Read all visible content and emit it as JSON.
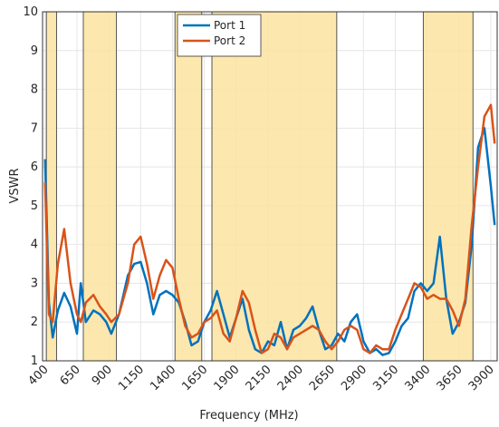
{
  "chart_data": {
    "type": "line",
    "x_label": "Frequency (MHz)",
    "y_label": "VSWR",
    "x": [
      400,
      430,
      460,
      500,
      550,
      600,
      650,
      680,
      720,
      780,
      830,
      880,
      920,
      980,
      1050,
      1100,
      1150,
      1200,
      1250,
      1300,
      1350,
      1400,
      1450,
      1500,
      1550,
      1600,
      1650,
      1700,
      1750,
      1800,
      1850,
      1900,
      1950,
      2000,
      2050,
      2100,
      2150,
      2200,
      2250,
      2300,
      2350,
      2400,
      2450,
      2500,
      2550,
      2600,
      2650,
      2700,
      2750,
      2800,
      2850,
      2900,
      2950,
      3000,
      3050,
      3100,
      3150,
      3200,
      3250,
      3300,
      3350,
      3400,
      3450,
      3500,
      3550,
      3600,
      3650,
      3700,
      3750,
      3800,
      3850,
      3900,
      3930
    ],
    "series": [
      {
        "name": "Port 1",
        "color": "#0072bd",
        "values": [
          6.2,
          2.5,
          1.6,
          2.3,
          2.75,
          2.4,
          1.7,
          3.0,
          2.0,
          2.3,
          2.2,
          2.0,
          1.7,
          2.2,
          3.2,
          3.5,
          3.55,
          3.0,
          2.2,
          2.7,
          2.8,
          2.7,
          2.5,
          2.0,
          1.4,
          1.5,
          2.0,
          2.3,
          2.8,
          2.2,
          1.6,
          2.1,
          2.6,
          1.8,
          1.3,
          1.2,
          1.5,
          1.4,
          2.0,
          1.3,
          1.8,
          1.9,
          2.1,
          2.4,
          1.8,
          1.3,
          1.4,
          1.7,
          1.5,
          2.0,
          2.2,
          1.5,
          1.2,
          1.3,
          1.15,
          1.2,
          1.5,
          1.9,
          2.1,
          2.8,
          3.0,
          2.8,
          3.0,
          4.2,
          2.6,
          1.7,
          2.0,
          2.5,
          4.0,
          6.5,
          7.0,
          5.5,
          4.5
        ]
      },
      {
        "name": "Port 2",
        "color": "#d95319",
        "values": [
          5.6,
          2.2,
          2.0,
          3.5,
          4.4,
          3.0,
          2.2,
          2.0,
          2.5,
          2.7,
          2.4,
          2.2,
          2.0,
          2.2,
          3.0,
          4.0,
          4.2,
          3.5,
          2.6,
          3.2,
          3.6,
          3.4,
          2.6,
          1.9,
          1.6,
          1.7,
          2.0,
          2.1,
          2.3,
          1.7,
          1.5,
          2.1,
          2.8,
          2.5,
          1.8,
          1.2,
          1.3,
          1.7,
          1.6,
          1.3,
          1.6,
          1.7,
          1.8,
          1.9,
          1.8,
          1.5,
          1.3,
          1.5,
          1.8,
          1.9,
          1.8,
          1.3,
          1.2,
          1.4,
          1.3,
          1.3,
          1.8,
          2.2,
          2.6,
          3.0,
          2.9,
          2.6,
          2.7,
          2.6,
          2.6,
          2.3,
          1.9,
          2.6,
          4.5,
          6.0,
          7.3,
          7.6,
          6.6
        ]
      }
    ],
    "bands": [
      [
        410,
        490
      ],
      [
        700,
        960
      ],
      [
        1420,
        1630
      ],
      [
        1710,
        2690
      ],
      [
        3370,
        3760
      ]
    ],
    "band_color": "#fbe3a0",
    "xlim": [
      380,
      3950
    ],
    "xticks": [
      400,
      650,
      900,
      1150,
      1400,
      1650,
      1900,
      2150,
      2400,
      2650,
      2900,
      3150,
      3400,
      3650,
      3900
    ],
    "ylim": [
      1,
      10
    ],
    "yticks": [
      1,
      2,
      3,
      4,
      5,
      6,
      7,
      8,
      9,
      10
    ],
    "grid": true,
    "legend": "north"
  }
}
